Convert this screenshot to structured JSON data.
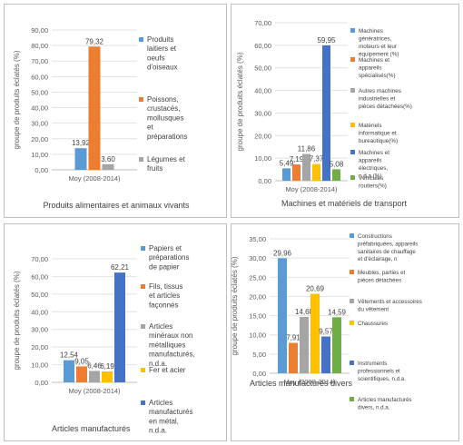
{
  "chart_data": [
    {
      "type": "bar",
      "title": "Produits alimentaires et animaux vivants",
      "ylabel": "groupe de produits éclatés (%)",
      "categories": [
        "Moy (2008-2014)"
      ],
      "ylim": [
        0,
        90
      ],
      "yticks": [
        "0,00",
        "10,00",
        "20,00",
        "30,00",
        "40,00",
        "50,00",
        "60,00",
        "70,00",
        "80,00",
        "90,00"
      ],
      "legend_position": "right",
      "series": [
        {
          "name": "Produits laitiers et oeufs d'oiseaux",
          "color": "#5b9bd5",
          "values": [
            13.92
          ],
          "label": "13,92"
        },
        {
          "name": "Poissons, crustacés, mollusques et préparations",
          "color": "#ed7d31",
          "values": [
            79.32
          ],
          "label": "79,32"
        },
        {
          "name": "Légumes et fruits",
          "color": "#a5a5a5",
          "values": [
            3.6
          ],
          "label": "3,60"
        }
      ]
    },
    {
      "type": "bar",
      "title": "Machines et matériels de transport",
      "ylabel": "groupe de produits éclatés (%)",
      "categories": [
        "Moy (2008-2014)"
      ],
      "ylim": [
        0,
        70
      ],
      "yticks": [
        "0,00",
        "10,00",
        "20,00",
        "30,00",
        "40,00",
        "50,00",
        "60,00",
        "70,00"
      ],
      "legend_position": "right",
      "series": [
        {
          "name": "Machines génératrices, moteurs et leur équipement (%)",
          "color": "#5b9bd5",
          "values": [
            5.49
          ],
          "label": "5,49"
        },
        {
          "name": "Machines et appareils spécialisés(%)",
          "color": "#ed7d31",
          "values": [
            7.19
          ],
          "label": "7,19"
        },
        {
          "name": "Autres machines industrielles et pièces détachées(%)",
          "color": "#a5a5a5",
          "values": [
            11.86
          ],
          "label": "11,86"
        },
        {
          "name": "Matériels informatique et bureautique(%)",
          "color": "#ffc000",
          "values": [
            7.37
          ],
          "label": "7,37"
        },
        {
          "name": "Machines et appareils électriques, n.d.a.(%)",
          "color": "#4472c4",
          "values": [
            59.95
          ],
          "label": "59,95"
        },
        {
          "name": "Véhicules routiers(%)",
          "color": "#70ad47",
          "values": [
            5.08
          ],
          "label": "5,08"
        }
      ]
    },
    {
      "type": "bar",
      "title": "Articles manufacturés",
      "ylabel": "groupe de produits éclatés (%)",
      "categories": [
        "Moy (2008-2014)"
      ],
      "ylim": [
        0,
        70
      ],
      "yticks": [
        "0,00",
        "10,00",
        "20,00",
        "30,00",
        "40,00",
        "50,00",
        "60,00",
        "70,00"
      ],
      "legend_position": "right",
      "series": [
        {
          "name": "Papiers et préparations de papier",
          "color": "#5b9bd5",
          "values": [
            12.54
          ],
          "label": "12,54"
        },
        {
          "name": "Fils, tissus et articles façonnés",
          "color": "#ed7d31",
          "values": [
            9.05
          ],
          "label": "9,05"
        },
        {
          "name": "Articles minéraux non métalliques manufacturés, n.d.a.",
          "color": "#a5a5a5",
          "values": [
            6.46
          ],
          "label": "6,46"
        },
        {
          "name": "Fer et acier",
          "color": "#ffc000",
          "values": [
            6.19
          ],
          "label": "6,19"
        },
        {
          "name": "Articles manufacturés en métal, n.d.a.",
          "color": "#4472c4",
          "values": [
            62.21
          ],
          "label": "62,21"
        }
      ]
    },
    {
      "type": "bar",
      "title": "Articles manufacturés divers",
      "ylabel": "groupe de produits éclatés (%)",
      "categories": [
        "Moy (2008-2014)"
      ],
      "ylim": [
        0,
        35
      ],
      "yticks": [
        "0,00",
        "5,00",
        "10,00",
        "15,00",
        "20,00",
        "25,00",
        "30,00",
        "35,00"
      ],
      "legend_position": "right",
      "series": [
        {
          "name": "Constructions préfabriquées, appareils sanitaires de chauffage et d'éclairage, n",
          "color": "#5b9bd5",
          "values": [
            29.96
          ],
          "label": "29,96"
        },
        {
          "name": "Meubles, parties et pièces détachées",
          "color": "#ed7d31",
          "values": [
            7.91
          ],
          "label": "7,91"
        },
        {
          "name": "Vêtements et accessoires du vêtement",
          "color": "#a5a5a5",
          "values": [
            14.68
          ],
          "label": "14,68"
        },
        {
          "name": "Chaussures",
          "color": "#ffc000",
          "values": [
            20.69
          ],
          "label": "20,69"
        },
        {
          "name": "Instruments professionnels et scientifiques, n.d.a.",
          "color": "#4472c4",
          "values": [
            9.57
          ],
          "label": "9,57"
        },
        {
          "name": "Articles manufacturés divers, n.d.a.",
          "color": "#70ad47",
          "values": [
            14.59
          ],
          "label": "14,59"
        }
      ]
    }
  ]
}
